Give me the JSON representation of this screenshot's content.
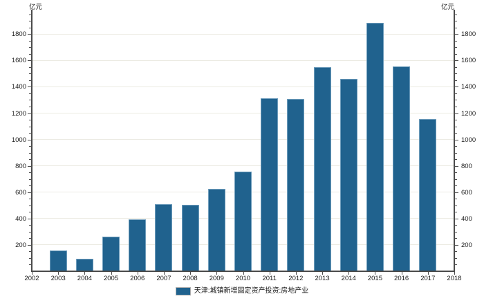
{
  "chart_data": {
    "type": "bar",
    "title": "",
    "unit_label_left": "亿元",
    "unit_label_right": "亿元",
    "legend": [
      "天津:城镇新增固定资产投资:房地产业"
    ],
    "legend_position": "bottom",
    "categories": [
      2003,
      2004,
      2005,
      2006,
      2007,
      2008,
      2009,
      2010,
      2011,
      2012,
      2013,
      2014,
      2015,
      2016,
      2017
    ],
    "values": [
      155,
      93,
      264,
      392,
      508,
      504,
      626,
      754,
      1312,
      1306,
      1547,
      1460,
      1886,
      1554,
      1157
    ],
    "x_axis_ticks": [
      2002,
      2003,
      2004,
      2005,
      2006,
      2007,
      2008,
      2009,
      2010,
      2011,
      2012,
      2013,
      2014,
      2015,
      2016,
      2017,
      2018
    ],
    "y_axis_ticks": [
      200,
      400,
      600,
      800,
      1000,
      1200,
      1400,
      1600,
      1800
    ],
    "y_minor_step": 50,
    "xlim": [
      2002,
      2018
    ],
    "ylim": [
      0,
      1980
    ],
    "grid": "horizontal",
    "colors": {
      "bar_fill": "#20628E",
      "bar_edge": "#6F9DBC",
      "grid": "#ECEBE3",
      "axis": "#4A4A4A",
      "text": "#1A1A1A"
    }
  }
}
